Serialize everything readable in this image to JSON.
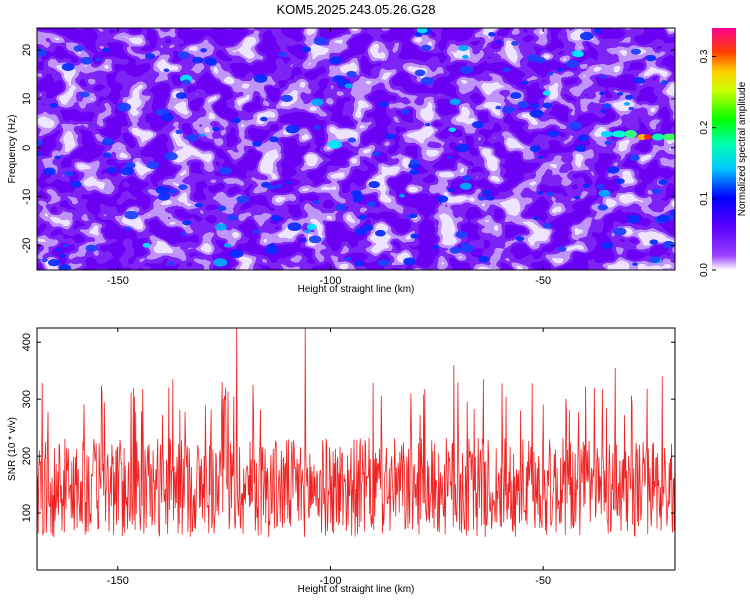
{
  "title": "KOM5.2025.243.05.26.G28",
  "chart_data": [
    {
      "type": "heatmap",
      "title": "KOM5.2025.243.05.26.G28",
      "xlabel": "Height of straight line (km)",
      "ylabel": "Frequency (Hz)",
      "xlim": [
        -169,
        -19
      ],
      "ylim": [
        -25,
        24.5
      ],
      "xticks": [
        -150,
        -100,
        -50
      ],
      "yticks": [
        -20,
        -10,
        0,
        10,
        20
      ],
      "colorbar": {
        "label": "Normalized spectral amplitude",
        "range": [
          0.0,
          0.34
        ],
        "ticks": [
          0.0,
          0.1,
          0.2,
          0.3
        ],
        "colormap": [
          "#ffffff",
          "#7a00ff",
          "#0000ff",
          "#00ffff",
          "#00ff00",
          "#ffff00",
          "#ff8000",
          "#ff0000",
          "#ff00ff"
        ]
      },
      "notable_feature": {
        "description": "bright high-amplitude band near 0-2 Hz",
        "x_range_km": [
          -35,
          -19
        ],
        "frequency_hz": 2,
        "peak_amplitude": 0.3
      }
    },
    {
      "type": "line",
      "xlabel": "Height of straight line (km)",
      "ylabel": "SNR (10 * v/v)",
      "xlim": [
        -169,
        -19
      ],
      "ylim": [
        0,
        425
      ],
      "xticks": [
        -150,
        -100,
        -50
      ],
      "yticks": [
        100,
        200,
        300,
        400
      ],
      "series": [
        {
          "name": "SNR",
          "color": "#ee2222",
          "typical_range": [
            20,
            270
          ],
          "peaks": [
            {
              "x": -122,
              "y": 425
            },
            {
              "x": -106,
              "y": 425
            },
            {
              "x": -71,
              "y": 360
            },
            {
              "x": -64,
              "y": 335
            },
            {
              "x": -137,
              "y": 335
            },
            {
              "x": -33,
              "y": 355
            },
            {
              "x": -22,
              "y": 340
            }
          ]
        }
      ]
    }
  ]
}
